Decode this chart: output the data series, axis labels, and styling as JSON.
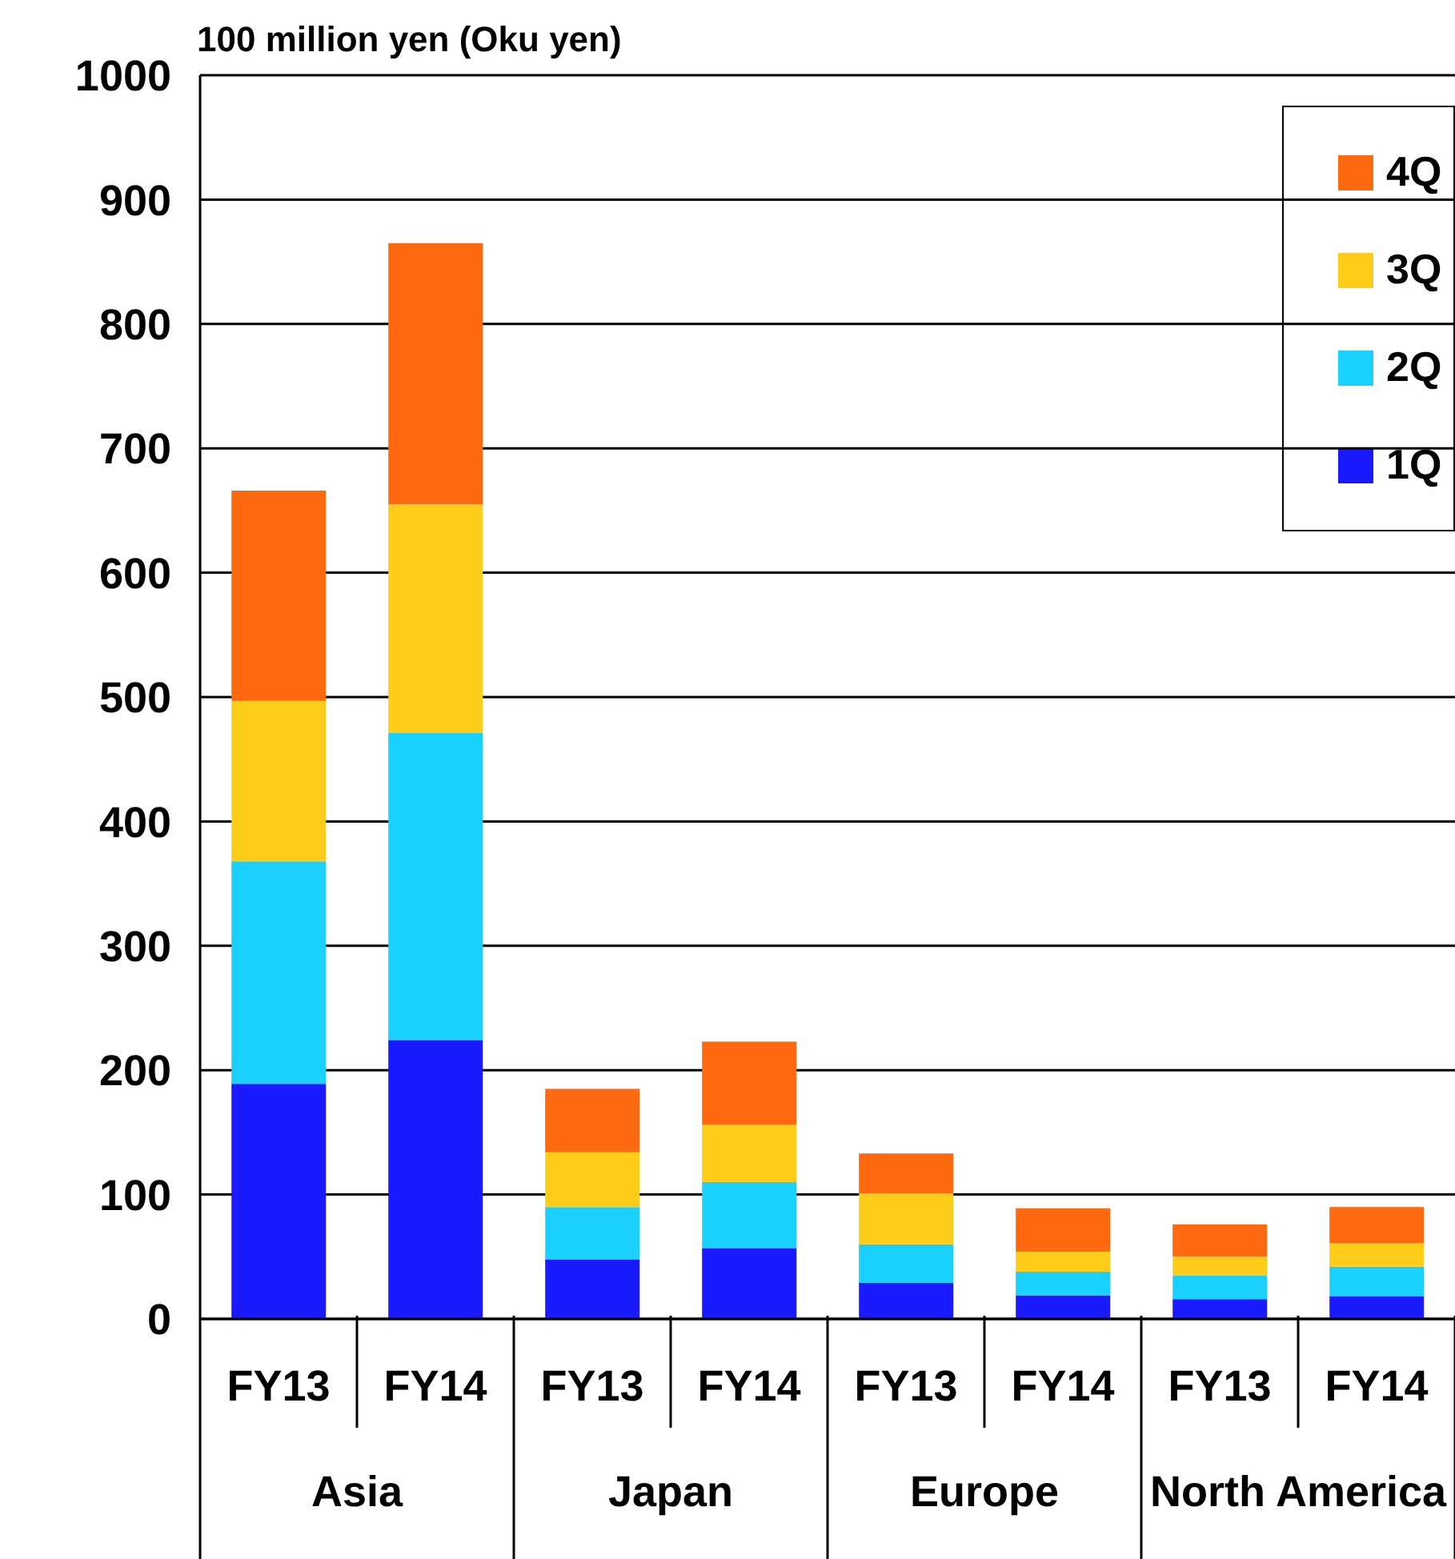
{
  "chart_data": {
    "type": "bar",
    "ylabel": "100 million yen (Oku yen)",
    "categories": [
      "FY13",
      "FY14",
      "FY13",
      "FY14",
      "FY13",
      "FY14",
      "FY13",
      "FY14"
    ],
    "annotations": [
      "Asia",
      "Japan",
      "Europe",
      "North America"
    ],
    "series": [
      {
        "name": "1Q",
        "color": "#1a1aff",
        "values": [
          189,
          224,
          48,
          57,
          29,
          19,
          16,
          18
        ]
      },
      {
        "name": "2Q",
        "color": "#1ad0ff",
        "values": [
          179,
          247,
          42,
          53,
          31,
          19,
          19,
          24
        ]
      },
      {
        "name": "3Q",
        "color": "#ffcc1a",
        "values": [
          129,
          184,
          44,
          46,
          41,
          16,
          15,
          19
        ]
      },
      {
        "name": "4Q",
        "color": "#ff6a10",
        "values": [
          169,
          210,
          51,
          67,
          32,
          35,
          26,
          29
        ]
      }
    ],
    "stacked": true,
    "ylim": [
      0,
      1000
    ],
    "yticks": [
      0,
      100,
      200,
      300,
      400,
      500,
      600,
      700,
      800,
      900,
      1000
    ],
    "grid": "y",
    "legend": "top right"
  }
}
